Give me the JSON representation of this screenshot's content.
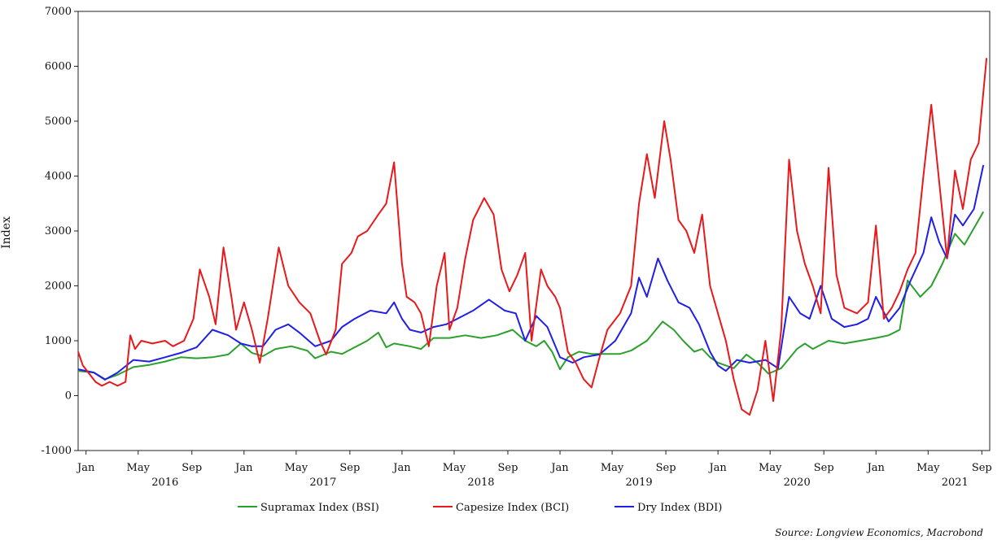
{
  "chart_data": {
    "type": "line",
    "title": "",
    "xlabel": "",
    "ylabel": "Index",
    "ylim": [
      -1000,
      7000
    ],
    "y_ticks": [
      "-1000",
      "0",
      "1000",
      "2000",
      "3000",
      "4000",
      "5000",
      "6000",
      "7000"
    ],
    "y_tick_values": [
      -1000,
      0,
      1000,
      2000,
      3000,
      4000,
      5000,
      6000,
      7000
    ],
    "x_range": [
      2015.95,
      2021.72
    ],
    "month_ticks": [
      {
        "label": "Jan",
        "x": 2016.0
      },
      {
        "label": "May",
        "x": 2016.33
      },
      {
        "label": "Sep",
        "x": 2016.67
      },
      {
        "label": "Jan",
        "x": 2017.0
      },
      {
        "label": "May",
        "x": 2017.33
      },
      {
        "label": "Sep",
        "x": 2017.67
      },
      {
        "label": "Jan",
        "x": 2018.0
      },
      {
        "label": "May",
        "x": 2018.33
      },
      {
        "label": "Sep",
        "x": 2018.67
      },
      {
        "label": "Jan",
        "x": 2019.0
      },
      {
        "label": "May",
        "x": 2019.33
      },
      {
        "label": "Sep",
        "x": 2019.67
      },
      {
        "label": "Jan",
        "x": 2020.0
      },
      {
        "label": "May",
        "x": 2020.33
      },
      {
        "label": "Sep",
        "x": 2020.67
      },
      {
        "label": "Jan",
        "x": 2021.0
      },
      {
        "label": "May",
        "x": 2021.33
      },
      {
        "label": "Sep",
        "x": 2021.67
      }
    ],
    "year_labels": [
      {
        "label": "2016",
        "x": 2016.5
      },
      {
        "label": "2017",
        "x": 2017.5
      },
      {
        "label": "2018",
        "x": 2018.5
      },
      {
        "label": "2019",
        "x": 2019.5
      },
      {
        "label": "2020",
        "x": 2020.5
      },
      {
        "label": "2021",
        "x": 2021.5
      }
    ],
    "grid": false,
    "legend_position": "bottom-center",
    "series": [
      {
        "name": "Supramax Index (BSI)",
        "color": "#2ca02c",
        "points": [
          [
            2015.95,
            450
          ],
          [
            2016.05,
            420
          ],
          [
            2016.12,
            300
          ],
          [
            2016.2,
            380
          ],
          [
            2016.3,
            520
          ],
          [
            2016.4,
            560
          ],
          [
            2016.5,
            620
          ],
          [
            2016.6,
            700
          ],
          [
            2016.7,
            680
          ],
          [
            2016.8,
            700
          ],
          [
            2016.9,
            750
          ],
          [
            2016.98,
            950
          ],
          [
            2017.05,
            780
          ],
          [
            2017.12,
            720
          ],
          [
            2017.2,
            850
          ],
          [
            2017.3,
            900
          ],
          [
            2017.4,
            820
          ],
          [
            2017.45,
            680
          ],
          [
            2017.55,
            800
          ],
          [
            2017.62,
            760
          ],
          [
            2017.7,
            880
          ],
          [
            2017.78,
            1000
          ],
          [
            2017.85,
            1150
          ],
          [
            2017.9,
            880
          ],
          [
            2017.95,
            950
          ],
          [
            2018.05,
            900
          ],
          [
            2018.12,
            850
          ],
          [
            2018.2,
            1050
          ],
          [
            2018.3,
            1050
          ],
          [
            2018.4,
            1100
          ],
          [
            2018.5,
            1050
          ],
          [
            2018.6,
            1100
          ],
          [
            2018.7,
            1200
          ],
          [
            2018.78,
            1000
          ],
          [
            2018.85,
            900
          ],
          [
            2018.9,
            1000
          ],
          [
            2018.95,
            800
          ],
          [
            2019.0,
            480
          ],
          [
            2019.05,
            700
          ],
          [
            2019.12,
            800
          ],
          [
            2019.2,
            760
          ],
          [
            2019.3,
            760
          ],
          [
            2019.38,
            760
          ],
          [
            2019.45,
            820
          ],
          [
            2019.55,
            1000
          ],
          [
            2019.65,
            1350
          ],
          [
            2019.72,
            1200
          ],
          [
            2019.78,
            1000
          ],
          [
            2019.85,
            800
          ],
          [
            2019.9,
            850
          ],
          [
            2019.95,
            700
          ],
          [
            2020.0,
            600
          ],
          [
            2020.1,
            500
          ],
          [
            2020.18,
            750
          ],
          [
            2020.25,
            600
          ],
          [
            2020.32,
            400
          ],
          [
            2020.4,
            500
          ],
          [
            2020.5,
            850
          ],
          [
            2020.55,
            950
          ],
          [
            2020.6,
            850
          ],
          [
            2020.7,
            1000
          ],
          [
            2020.8,
            950
          ],
          [
            2020.9,
            1000
          ],
          [
            2021.0,
            1050
          ],
          [
            2021.08,
            1100
          ],
          [
            2021.15,
            1200
          ],
          [
            2021.2,
            2100
          ],
          [
            2021.28,
            1800
          ],
          [
            2021.35,
            2000
          ],
          [
            2021.42,
            2400
          ],
          [
            2021.5,
            2950
          ],
          [
            2021.56,
            2750
          ],
          [
            2021.62,
            3050
          ],
          [
            2021.68,
            3350
          ]
        ]
      },
      {
        "name": "Capesize Index (BCI)",
        "color": "#e8191c",
        "points": [
          [
            2015.95,
            800
          ],
          [
            2015.98,
            550
          ],
          [
            2016.02,
            400
          ],
          [
            2016.06,
            250
          ],
          [
            2016.1,
            180
          ],
          [
            2016.15,
            250
          ],
          [
            2016.2,
            180
          ],
          [
            2016.25,
            250
          ],
          [
            2016.28,
            1100
          ],
          [
            2016.31,
            850
          ],
          [
            2016.35,
            1000
          ],
          [
            2016.42,
            950
          ],
          [
            2016.5,
            1000
          ],
          [
            2016.55,
            900
          ],
          [
            2016.62,
            1000
          ],
          [
            2016.68,
            1400
          ],
          [
            2016.72,
            2300
          ],
          [
            2016.78,
            1800
          ],
          [
            2016.82,
            1300
          ],
          [
            2016.87,
            2700
          ],
          [
            2016.92,
            1800
          ],
          [
            2016.95,
            1200
          ],
          [
            2017.0,
            1700
          ],
          [
            2017.05,
            1200
          ],
          [
            2017.1,
            600
          ],
          [
            2017.15,
            1400
          ],
          [
            2017.22,
            2700
          ],
          [
            2017.28,
            2000
          ],
          [
            2017.35,
            1700
          ],
          [
            2017.42,
            1500
          ],
          [
            2017.48,
            1000
          ],
          [
            2017.52,
            750
          ],
          [
            2017.58,
            1200
          ],
          [
            2017.62,
            2400
          ],
          [
            2017.68,
            2600
          ],
          [
            2017.72,
            2900
          ],
          [
            2017.78,
            3000
          ],
          [
            2017.85,
            3300
          ],
          [
            2017.9,
            3500
          ],
          [
            2017.95,
            4250
          ],
          [
            2018.0,
            2400
          ],
          [
            2018.03,
            1800
          ],
          [
            2018.08,
            1700
          ],
          [
            2018.12,
            1500
          ],
          [
            2018.17,
            900
          ],
          [
            2018.22,
            2000
          ],
          [
            2018.27,
            2600
          ],
          [
            2018.3,
            1200
          ],
          [
            2018.35,
            1600
          ],
          [
            2018.4,
            2500
          ],
          [
            2018.45,
            3200
          ],
          [
            2018.52,
            3600
          ],
          [
            2018.58,
            3300
          ],
          [
            2018.63,
            2300
          ],
          [
            2018.68,
            1900
          ],
          [
            2018.73,
            2200
          ],
          [
            2018.78,
            2600
          ],
          [
            2018.82,
            1000
          ],
          [
            2018.88,
            2300
          ],
          [
            2018.92,
            2000
          ],
          [
            2018.97,
            1800
          ],
          [
            2019.0,
            1600
          ],
          [
            2019.05,
            800
          ],
          [
            2019.1,
            600
          ],
          [
            2019.15,
            300
          ],
          [
            2019.2,
            150
          ],
          [
            2019.25,
            700
          ],
          [
            2019.3,
            1200
          ],
          [
            2019.38,
            1500
          ],
          [
            2019.45,
            2000
          ],
          [
            2019.5,
            3500
          ],
          [
            2019.55,
            4400
          ],
          [
            2019.6,
            3600
          ],
          [
            2019.66,
            5000
          ],
          [
            2019.7,
            4300
          ],
          [
            2019.75,
            3200
          ],
          [
            2019.8,
            3000
          ],
          [
            2019.85,
            2600
          ],
          [
            2019.9,
            3300
          ],
          [
            2019.95,
            2000
          ],
          [
            2020.0,
            1500
          ],
          [
            2020.05,
            1000
          ],
          [
            2020.1,
            300
          ],
          [
            2020.15,
            -250
          ],
          [
            2020.2,
            -350
          ],
          [
            2020.25,
            100
          ],
          [
            2020.3,
            1000
          ],
          [
            2020.35,
            -100
          ],
          [
            2020.4,
            1200
          ],
          [
            2020.45,
            4300
          ],
          [
            2020.5,
            3000
          ],
          [
            2020.55,
            2400
          ],
          [
            2020.6,
            2000
          ],
          [
            2020.65,
            1500
          ],
          [
            2020.7,
            4150
          ],
          [
            2020.75,
            2200
          ],
          [
            2020.8,
            1600
          ],
          [
            2020.88,
            1500
          ],
          [
            2020.95,
            1700
          ],
          [
            2021.0,
            3100
          ],
          [
            2021.05,
            1400
          ],
          [
            2021.1,
            1600
          ],
          [
            2021.15,
            1900
          ],
          [
            2021.2,
            2300
          ],
          [
            2021.25,
            2600
          ],
          [
            2021.3,
            4000
          ],
          [
            2021.35,
            5300
          ],
          [
            2021.4,
            3900
          ],
          [
            2021.45,
            2500
          ],
          [
            2021.5,
            4100
          ],
          [
            2021.55,
            3400
          ],
          [
            2021.6,
            4300
          ],
          [
            2021.65,
            4600
          ],
          [
            2021.7,
            6150
          ]
        ]
      },
      {
        "name": "Dry Index (BDI)",
        "color": "#1f1fe6",
        "points": [
          [
            2015.95,
            480
          ],
          [
            2016.05,
            420
          ],
          [
            2016.12,
            290
          ],
          [
            2016.2,
            420
          ],
          [
            2016.3,
            650
          ],
          [
            2016.4,
            620
          ],
          [
            2016.5,
            700
          ],
          [
            2016.6,
            780
          ],
          [
            2016.7,
            880
          ],
          [
            2016.8,
            1200
          ],
          [
            2016.9,
            1100
          ],
          [
            2016.98,
            950
          ],
          [
            2017.05,
            900
          ],
          [
            2017.12,
            900
          ],
          [
            2017.2,
            1200
          ],
          [
            2017.28,
            1300
          ],
          [
            2017.35,
            1150
          ],
          [
            2017.45,
            900
          ],
          [
            2017.55,
            1000
          ],
          [
            2017.62,
            1250
          ],
          [
            2017.7,
            1400
          ],
          [
            2017.8,
            1550
          ],
          [
            2017.9,
            1500
          ],
          [
            2017.95,
            1700
          ],
          [
            2018.0,
            1400
          ],
          [
            2018.05,
            1200
          ],
          [
            2018.12,
            1150
          ],
          [
            2018.2,
            1250
          ],
          [
            2018.28,
            1300
          ],
          [
            2018.35,
            1400
          ],
          [
            2018.45,
            1550
          ],
          [
            2018.55,
            1750
          ],
          [
            2018.65,
            1550
          ],
          [
            2018.72,
            1500
          ],
          [
            2018.78,
            1000
          ],
          [
            2018.85,
            1450
          ],
          [
            2018.92,
            1250
          ],
          [
            2019.0,
            700
          ],
          [
            2019.08,
            600
          ],
          [
            2019.15,
            700
          ],
          [
            2019.25,
            750
          ],
          [
            2019.35,
            1000
          ],
          [
            2019.45,
            1500
          ],
          [
            2019.5,
            2150
          ],
          [
            2019.55,
            1800
          ],
          [
            2019.62,
            2500
          ],
          [
            2019.68,
            2100
          ],
          [
            2019.75,
            1700
          ],
          [
            2019.82,
            1600
          ],
          [
            2019.88,
            1300
          ],
          [
            2019.95,
            800
          ],
          [
            2020.0,
            550
          ],
          [
            2020.05,
            450
          ],
          [
            2020.12,
            650
          ],
          [
            2020.2,
            600
          ],
          [
            2020.3,
            650
          ],
          [
            2020.38,
            500
          ],
          [
            2020.45,
            1800
          ],
          [
            2020.52,
            1500
          ],
          [
            2020.58,
            1400
          ],
          [
            2020.65,
            2000
          ],
          [
            2020.72,
            1400
          ],
          [
            2020.8,
            1250
          ],
          [
            2020.88,
            1300
          ],
          [
            2020.95,
            1400
          ],
          [
            2021.0,
            1800
          ],
          [
            2021.08,
            1350
          ],
          [
            2021.15,
            1600
          ],
          [
            2021.22,
            2100
          ],
          [
            2021.3,
            2600
          ],
          [
            2021.35,
            3250
          ],
          [
            2021.4,
            2800
          ],
          [
            2021.45,
            2500
          ],
          [
            2021.5,
            3300
          ],
          [
            2021.55,
            3100
          ],
          [
            2021.62,
            3400
          ],
          [
            2021.68,
            4200
          ]
        ]
      }
    ],
    "legend": [
      {
        "label": "Supramax Index (BSI)",
        "color": "#2ca02c"
      },
      {
        "label": "Capesize Index (BCI)",
        "color": "#e8191c"
      },
      {
        "label": "Dry Index (BDI)",
        "color": "#1f1fe6"
      }
    ],
    "source": "Source: Longview Economics, Macrobond"
  }
}
